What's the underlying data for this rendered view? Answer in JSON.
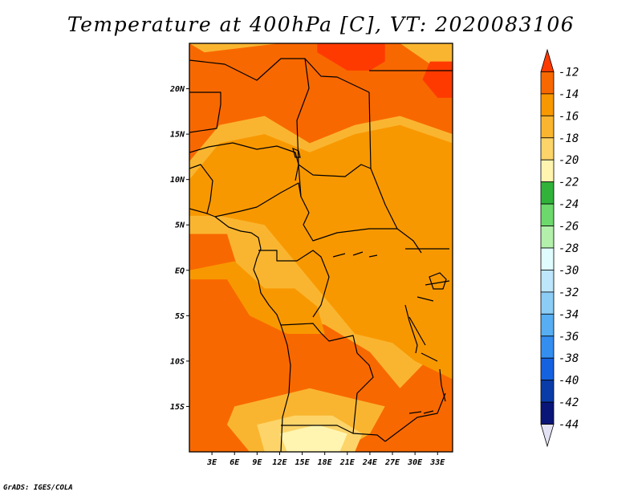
{
  "title": "Temperature at 400hPa [C], VT: 2020083106",
  "credit": "GrADS: IGES/COLA",
  "chart_data": {
    "type": "heatmap",
    "title": "Temperature at 400hPa [C], VT: 2020083106",
    "variable": "Temperature at 400hPa",
    "units": "C",
    "valid_time": "2020083106",
    "lon_range": [
      0,
      35
    ],
    "lat_range": [
      -20,
      25
    ],
    "x_ticks": [
      {
        "value": 3,
        "label": "3E"
      },
      {
        "value": 6,
        "label": "6E"
      },
      {
        "value": 9,
        "label": "9E"
      },
      {
        "value": 12,
        "label": "12E"
      },
      {
        "value": 15,
        "label": "15E"
      },
      {
        "value": 18,
        "label": "18E"
      },
      {
        "value": 21,
        "label": "21E"
      },
      {
        "value": 24,
        "label": "24E"
      },
      {
        "value": 27,
        "label": "27E"
      },
      {
        "value": 30,
        "label": "30E"
      },
      {
        "value": 33,
        "label": "33E"
      }
    ],
    "y_ticks": [
      {
        "value": 20,
        "label": "20N"
      },
      {
        "value": 15,
        "label": "15N"
      },
      {
        "value": 10,
        "label": "10N"
      },
      {
        "value": 5,
        "label": "5N"
      },
      {
        "value": 0,
        "label": "EQ"
      },
      {
        "value": -5,
        "label": "5S"
      },
      {
        "value": -10,
        "label": "10S"
      },
      {
        "value": -15,
        "label": "15S"
      }
    ],
    "colorbar": {
      "labels": [
        "-12",
        "-14",
        "-16",
        "-18",
        "-20",
        "-22",
        "-24",
        "-26",
        "-28",
        "-30",
        "-32",
        "-34",
        "-36",
        "-38",
        "-40",
        "-42",
        "-44"
      ],
      "colors": [
        "#ff3a00",
        "#f86800",
        "#f89800",
        "#fab530",
        "#fcd46a",
        "#fff5b0",
        "#31b33a",
        "#6dd96d",
        "#b2f0ab",
        "#e0fcff",
        "#bde6fb",
        "#8ccdf6",
        "#57aef2",
        "#348ef0",
        "#1562e1",
        "#0a3ca8",
        "#0a1578",
        "#e2e2f4"
      ]
    },
    "fields": [
      {
        "level": "-14",
        "region": [
          [
            2,
            24
          ],
          [
            12,
            25
          ],
          [
            28,
            25
          ],
          [
            35,
            21
          ],
          [
            35,
            15
          ],
          [
            28,
            17
          ],
          [
            22,
            16
          ],
          [
            16,
            14
          ],
          [
            10,
            17
          ],
          [
            4,
            16
          ],
          [
            0,
            12
          ],
          [
            0,
            25
          ]
        ]
      },
      {
        "level": "-14",
        "region": [
          [
            0,
            4
          ],
          [
            5,
            4
          ],
          [
            8,
            -4
          ],
          [
            13,
            -5
          ],
          [
            18,
            -6
          ],
          [
            24,
            -9
          ],
          [
            28,
            -13
          ],
          [
            35,
            -7
          ],
          [
            35,
            -20
          ],
          [
            0,
            -20
          ]
        ]
      },
      {
        "level": "-16",
        "region": [
          [
            4,
            6
          ],
          [
            10,
            5
          ],
          [
            14,
            1
          ],
          [
            18,
            -3
          ],
          [
            22,
            -7
          ],
          [
            27,
            -8
          ],
          [
            30,
            -10
          ],
          [
            35,
            -12
          ],
          [
            35,
            14
          ],
          [
            28,
            16
          ],
          [
            22,
            15
          ],
          [
            16,
            13
          ],
          [
            10,
            15
          ],
          [
            4,
            14
          ],
          [
            0,
            10
          ],
          [
            0,
            6
          ]
        ]
      },
      {
        "level": "-16",
        "region": [
          [
            0,
            0
          ],
          [
            6,
            1
          ],
          [
            10,
            -2
          ],
          [
            14,
            -2
          ],
          [
            17,
            -4
          ],
          [
            18,
            -7
          ],
          [
            13,
            -7
          ],
          [
            8,
            -5
          ],
          [
            5,
            -1
          ],
          [
            0,
            -1
          ]
        ]
      },
      {
        "level": "-18",
        "region": [
          [
            6,
            -15
          ],
          [
            11,
            -14
          ],
          [
            16,
            -13
          ],
          [
            21,
            -14
          ],
          [
            26,
            -15
          ],
          [
            24,
            -18
          ],
          [
            20,
            -20
          ],
          [
            8,
            -20
          ],
          [
            5,
            -17
          ]
        ]
      },
      {
        "level": "-20",
        "region": [
          [
            9,
            -17
          ],
          [
            14,
            -16
          ],
          [
            19,
            -16
          ],
          [
            23,
            -18
          ],
          [
            22,
            -20
          ],
          [
            10,
            -20
          ]
        ]
      },
      {
        "level": "-22",
        "region": [
          [
            12,
            -18
          ],
          [
            17,
            -17
          ],
          [
            21,
            -18
          ],
          [
            20,
            -20
          ],
          [
            13,
            -20
          ]
        ]
      },
      {
        "level": "-14",
        "region": [
          [
            7,
            -10
          ],
          [
            10,
            -9
          ],
          [
            11,
            -12
          ],
          [
            8,
            -13
          ]
        ]
      },
      {
        "level": "-12",
        "region": [
          [
            17,
            25
          ],
          [
            26,
            25
          ],
          [
            26,
            23
          ],
          [
            24,
            22
          ],
          [
            21,
            22
          ],
          [
            17,
            24
          ]
        ]
      },
      {
        "level": "-12",
        "region": [
          [
            32,
            23
          ],
          [
            35,
            23
          ],
          [
            35,
            19
          ],
          [
            33,
            19
          ],
          [
            31,
            21
          ]
        ]
      }
    ]
  }
}
